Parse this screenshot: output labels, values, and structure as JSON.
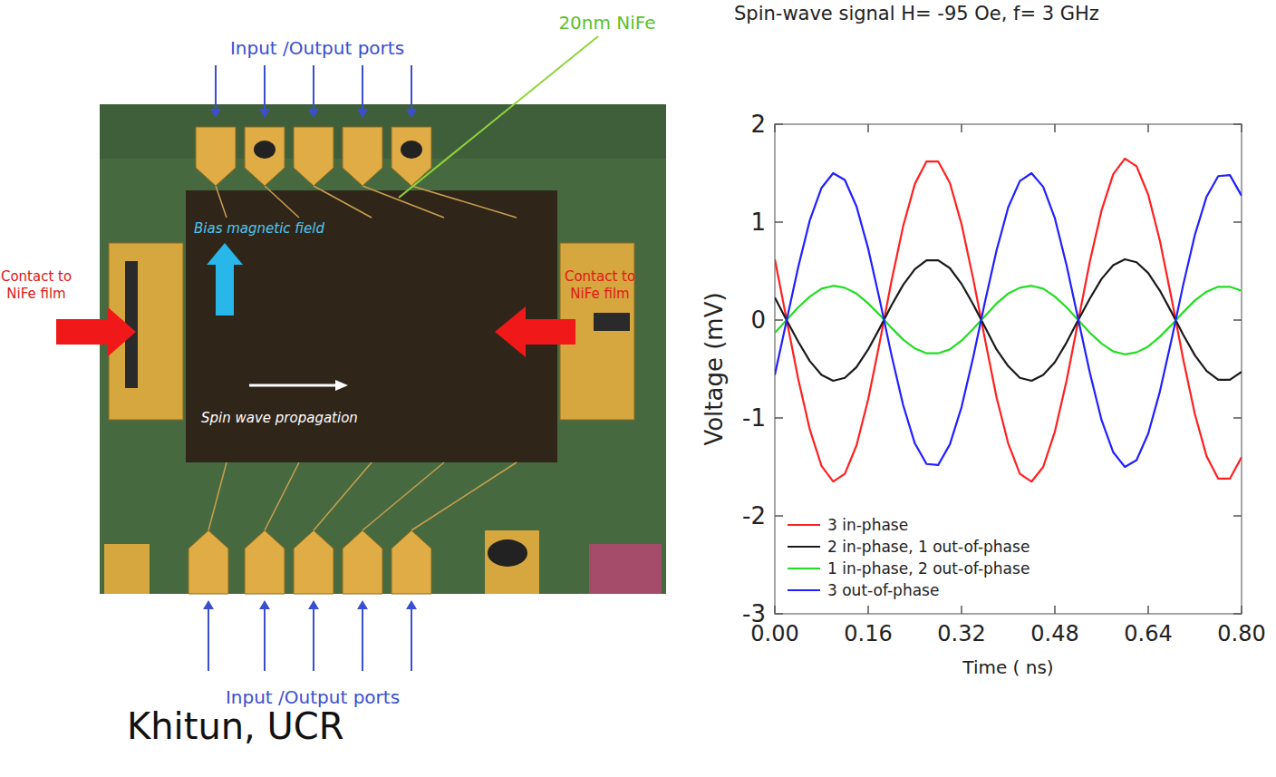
{
  "device": {
    "ports_top": "Input /Output ports",
    "ports_bottom": "Input /Output ports",
    "film": "20nm NiFe",
    "bias": "Bias magnetic field",
    "contact_left": [
      "Contact to",
      "NiFe film"
    ],
    "contact_right": [
      "Contact to",
      "NiFe film"
    ],
    "propagation": "Spin wave propagation"
  },
  "caption": "Khitun, UCR",
  "chart_data": {
    "type": "line",
    "title": "Spin-wave signal H= -95 Oe, f= 3 GHz",
    "x_label": "Time ( ns)",
    "y_label": "Voltage (mV)",
    "x": [
      0,
      0.02,
      0.04,
      0.06,
      0.08,
      0.1,
      0.12,
      0.14,
      0.16,
      0.18,
      0.2,
      0.22,
      0.24,
      0.26,
      0.28,
      0.3,
      0.32,
      0.34,
      0.36,
      0.38,
      0.4,
      0.42,
      0.44,
      0.46,
      0.48,
      0.5,
      0.52,
      0.54,
      0.56,
      0.58,
      0.6,
      0.62,
      0.64,
      0.66,
      0.68,
      0.7,
      0.72,
      0.74,
      0.76,
      0.78,
      0.8
    ],
    "series": [
      {
        "name": "3 in-phase",
        "color": "#ff2020",
        "values": [
          0.62,
          0.01,
          -0.6,
          -1.12,
          -1.49,
          -1.65,
          -1.57,
          -1.28,
          -0.81,
          -0.22,
          0.4,
          0.96,
          1.39,
          1.62,
          1.62,
          1.4,
          0.98,
          0.42,
          -0.19,
          -0.79,
          -1.26,
          -1.57,
          -1.65,
          -1.5,
          -1.14,
          -0.62,
          -0.01,
          0.6,
          1.12,
          1.49,
          1.65,
          1.57,
          1.28,
          0.81,
          0.22,
          -0.4,
          -0.96,
          -1.39,
          -1.62,
          -1.62,
          -1.4
        ]
      },
      {
        "name": "2 in-phase, 1 out-of-phase",
        "color": "#1a1a1a",
        "values": [
          0.23,
          0.0,
          -0.22,
          -0.42,
          -0.56,
          -0.62,
          -0.59,
          -0.48,
          -0.3,
          -0.08,
          0.15,
          0.36,
          0.52,
          0.61,
          0.61,
          0.53,
          0.37,
          0.16,
          -0.07,
          -0.3,
          -0.47,
          -0.59,
          -0.62,
          -0.56,
          -0.43,
          -0.23,
          0.0,
          0.22,
          0.42,
          0.56,
          0.62,
          0.59,
          0.48,
          0.3,
          0.08,
          -0.15,
          -0.36,
          -0.52,
          -0.61,
          -0.61,
          -0.53
        ]
      },
      {
        "name": "1 in-phase, 2 out-of-phase",
        "color": "#22dd22",
        "values": [
          -0.13,
          0.0,
          0.13,
          0.24,
          0.32,
          0.35,
          0.33,
          0.27,
          0.17,
          0.05,
          -0.08,
          -0.2,
          -0.29,
          -0.34,
          -0.34,
          -0.3,
          -0.21,
          -0.09,
          0.04,
          0.17,
          0.27,
          0.33,
          0.35,
          0.32,
          0.24,
          0.13,
          0.0,
          -0.13,
          -0.24,
          -0.32,
          -0.35,
          -0.33,
          -0.27,
          -0.17,
          -0.05,
          0.08,
          0.2,
          0.29,
          0.34,
          0.34,
          0.3
        ]
      },
      {
        "name": "3 out-of-phase",
        "color": "#2020ff",
        "values": [
          -0.56,
          -0.01,
          0.54,
          1.02,
          1.35,
          1.5,
          1.43,
          1.16,
          0.73,
          0.2,
          -0.36,
          -0.87,
          -1.26,
          -1.47,
          -1.48,
          -1.27,
          -0.89,
          -0.38,
          0.18,
          0.71,
          1.15,
          1.42,
          1.5,
          1.36,
          1.04,
          0.56,
          0.01,
          -0.54,
          -1.02,
          -1.35,
          -1.5,
          -1.43,
          -1.16,
          -0.73,
          -0.2,
          0.36,
          0.87,
          1.26,
          1.47,
          1.48,
          1.27
        ]
      }
    ],
    "xlim": [
      0,
      0.8
    ],
    "ylim": [
      -3,
      2
    ],
    "xticks": [
      {
        "value": 0,
        "label": "0.00"
      },
      0.16,
      0.32,
      0.48,
      0.64,
      {
        "value": 0.8,
        "label": "0.80"
      }
    ],
    "yticks": [
      -3,
      -2,
      -1,
      0,
      1,
      2
    ],
    "grid": false,
    "legend": "lower left"
  }
}
